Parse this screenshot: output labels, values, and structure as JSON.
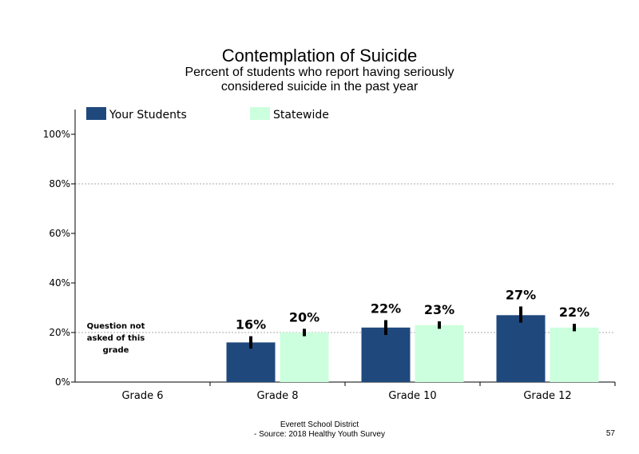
{
  "title": "Contemplation  of Suicide",
  "subtitle": "Percent of students who report having seriously considered suicide in the past year",
  "footer": {
    "line1": "Everett School District",
    "line2": "- Source: 2018 Healthy  Youth Survey",
    "page_number": "57"
  },
  "note": "Question not asked of this grade",
  "colors": {
    "your_students": "#1f497d",
    "statewide": "#ccffdd",
    "error_bar": "#000000",
    "grid": "#aaaaaa"
  },
  "chart_data": {
    "type": "bar",
    "categories": [
      "Grade 6",
      "Grade 8",
      "Grade 10",
      "Grade 12"
    ],
    "series": [
      {
        "name": "Your Students",
        "values": [
          null,
          16,
          22,
          27
        ],
        "labels": [
          "",
          "16%",
          "22%",
          "27%"
        ],
        "ci_low": [
          null,
          13.5,
          19,
          24
        ],
        "ci_high": [
          null,
          18.5,
          25,
          30.5
        ]
      },
      {
        "name": "Statewide",
        "values": [
          null,
          20,
          23,
          22
        ],
        "labels": [
          "",
          "20%",
          "23%",
          "22%"
        ],
        "ci_low": [
          null,
          18.5,
          21.5,
          20.5
        ],
        "ci_high": [
          null,
          21.5,
          24.5,
          23.5
        ]
      }
    ],
    "ylim": [
      0,
      110
    ],
    "yticks": [
      0,
      20,
      40,
      60,
      80,
      100
    ],
    "ytick_labels": [
      "0%",
      "20%",
      "40%",
      "60%",
      "80%",
      "100%"
    ],
    "gridlines": [
      20,
      80
    ],
    "legend_position": "top"
  }
}
